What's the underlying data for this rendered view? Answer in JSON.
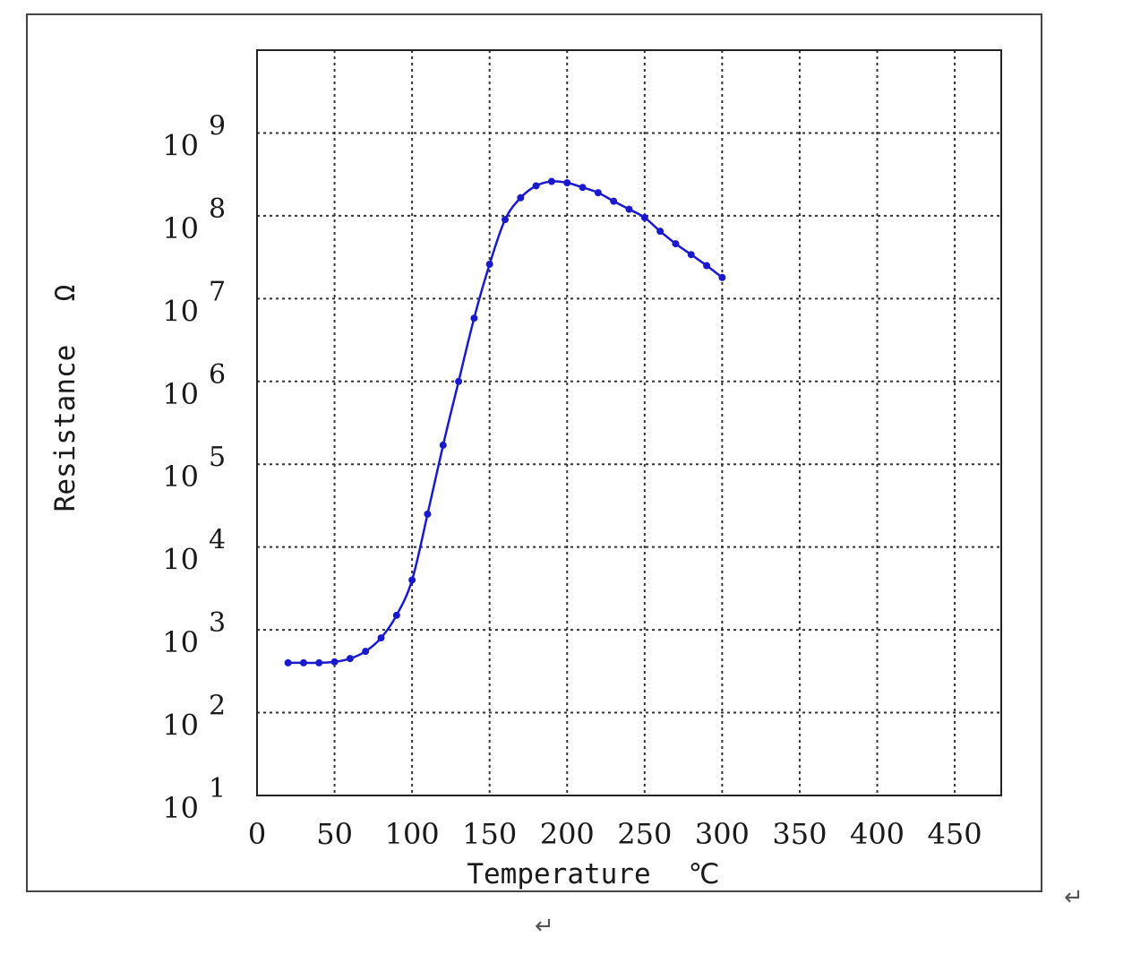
{
  "chart_data": {
    "type": "line",
    "title": "",
    "xlabel": "Temperature",
    "xunit": "℃",
    "ylabel": "Resistance",
    "yunit": "Ω",
    "xlim": [
      0,
      480
    ],
    "ylim": [
      10,
      10000000000
    ],
    "y_scale": "log",
    "x_ticks": [
      "0",
      "50",
      "100",
      "150",
      "200",
      "250",
      "300",
      "350",
      "400",
      "450"
    ],
    "x_tick_values": [
      0,
      50,
      100,
      150,
      200,
      250,
      300,
      350,
      400,
      450
    ],
    "y_ticks": [
      {
        "base": "10",
        "exp": "1",
        "value": 10
      },
      {
        "base": "10",
        "exp": "2",
        "value": 100
      },
      {
        "base": "10",
        "exp": "3",
        "value": 1000
      },
      {
        "base": "10",
        "exp": "4",
        "value": 10000
      },
      {
        "base": "10",
        "exp": "5",
        "value": 100000
      },
      {
        "base": "10",
        "exp": "6",
        "value": 1000000
      },
      {
        "base": "10",
        "exp": "7",
        "value": 10000000
      },
      {
        "base": "10",
        "exp": "8",
        "value": 100000000
      },
      {
        "base": "10",
        "exp": "9",
        "value": 1000000000
      }
    ],
    "grid": true,
    "grid_style": "dotted",
    "series": [
      {
        "color": "#1a1acc",
        "marker": "dot",
        "x": [
          20,
          30,
          40,
          50,
          60,
          70,
          80,
          90,
          100,
          110,
          120,
          130,
          140,
          150,
          160,
          170,
          180,
          190,
          200,
          210,
          220,
          230,
          240,
          250,
          260,
          270,
          280,
          290,
          300
        ],
        "y": [
          400,
          400,
          400,
          410,
          450,
          550,
          800,
          1500,
          4000,
          25000,
          170000,
          1000000,
          5800000,
          26000000,
          90000000,
          165000000,
          230000000,
          260000000,
          250000000,
          220000000,
          190000000,
          150000000,
          120000000,
          95000000,
          65000000,
          46000000,
          34000000,
          25000000,
          18000000
        ]
      }
    ]
  },
  "decorations": {
    "return_mark": "↵"
  }
}
